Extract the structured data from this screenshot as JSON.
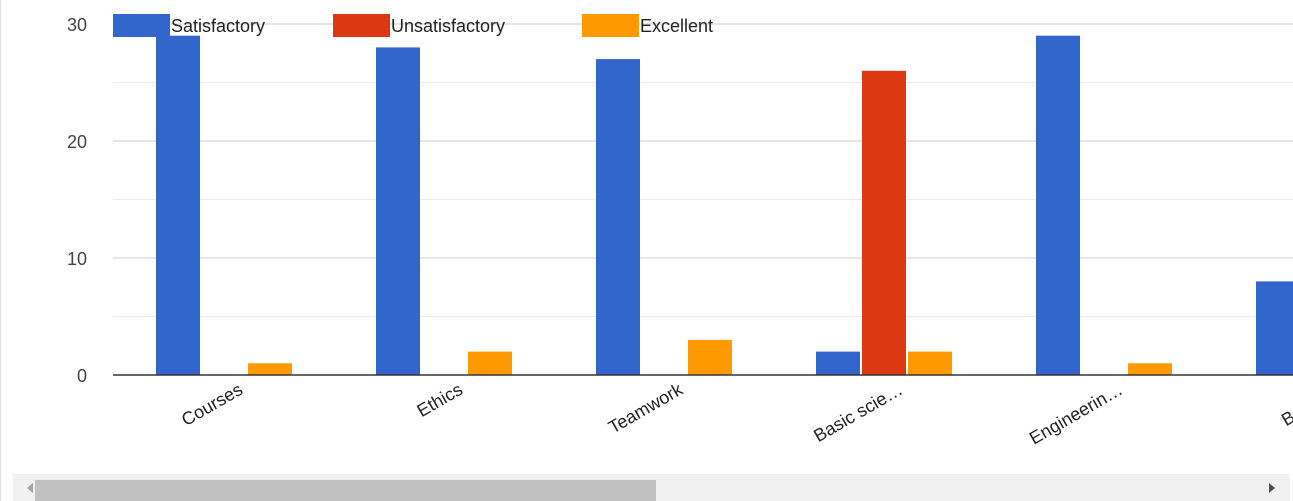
{
  "chart_data": {
    "type": "bar",
    "categories": [
      "Courses",
      "Ethics",
      "Teamwork",
      "Basic scie…",
      "Engineerin…",
      "Basic sc"
    ],
    "series": [
      {
        "name": "Satisfactory",
        "color": "#3366cc",
        "values": [
          29,
          28,
          27,
          2,
          29,
          8
        ]
      },
      {
        "name": "Unsatisfactory",
        "color": "#dc3912",
        "values": [
          0,
          0,
          0,
          26,
          0,
          null
        ]
      },
      {
        "name": "Excellent",
        "color": "#ff9900",
        "values": [
          1,
          2,
          3,
          2,
          1,
          null
        ]
      }
    ],
    "yticks": [
      0,
      10,
      20,
      30
    ],
    "ylim": [
      0,
      30
    ],
    "grid": true,
    "legend_position": "top-left",
    "xlabel": "",
    "ylabel": "",
    "title": ""
  },
  "scrollbar": {
    "left_arrow_icon": "triangle-left-icon",
    "right_arrow_icon": "triangle-right-icon"
  }
}
